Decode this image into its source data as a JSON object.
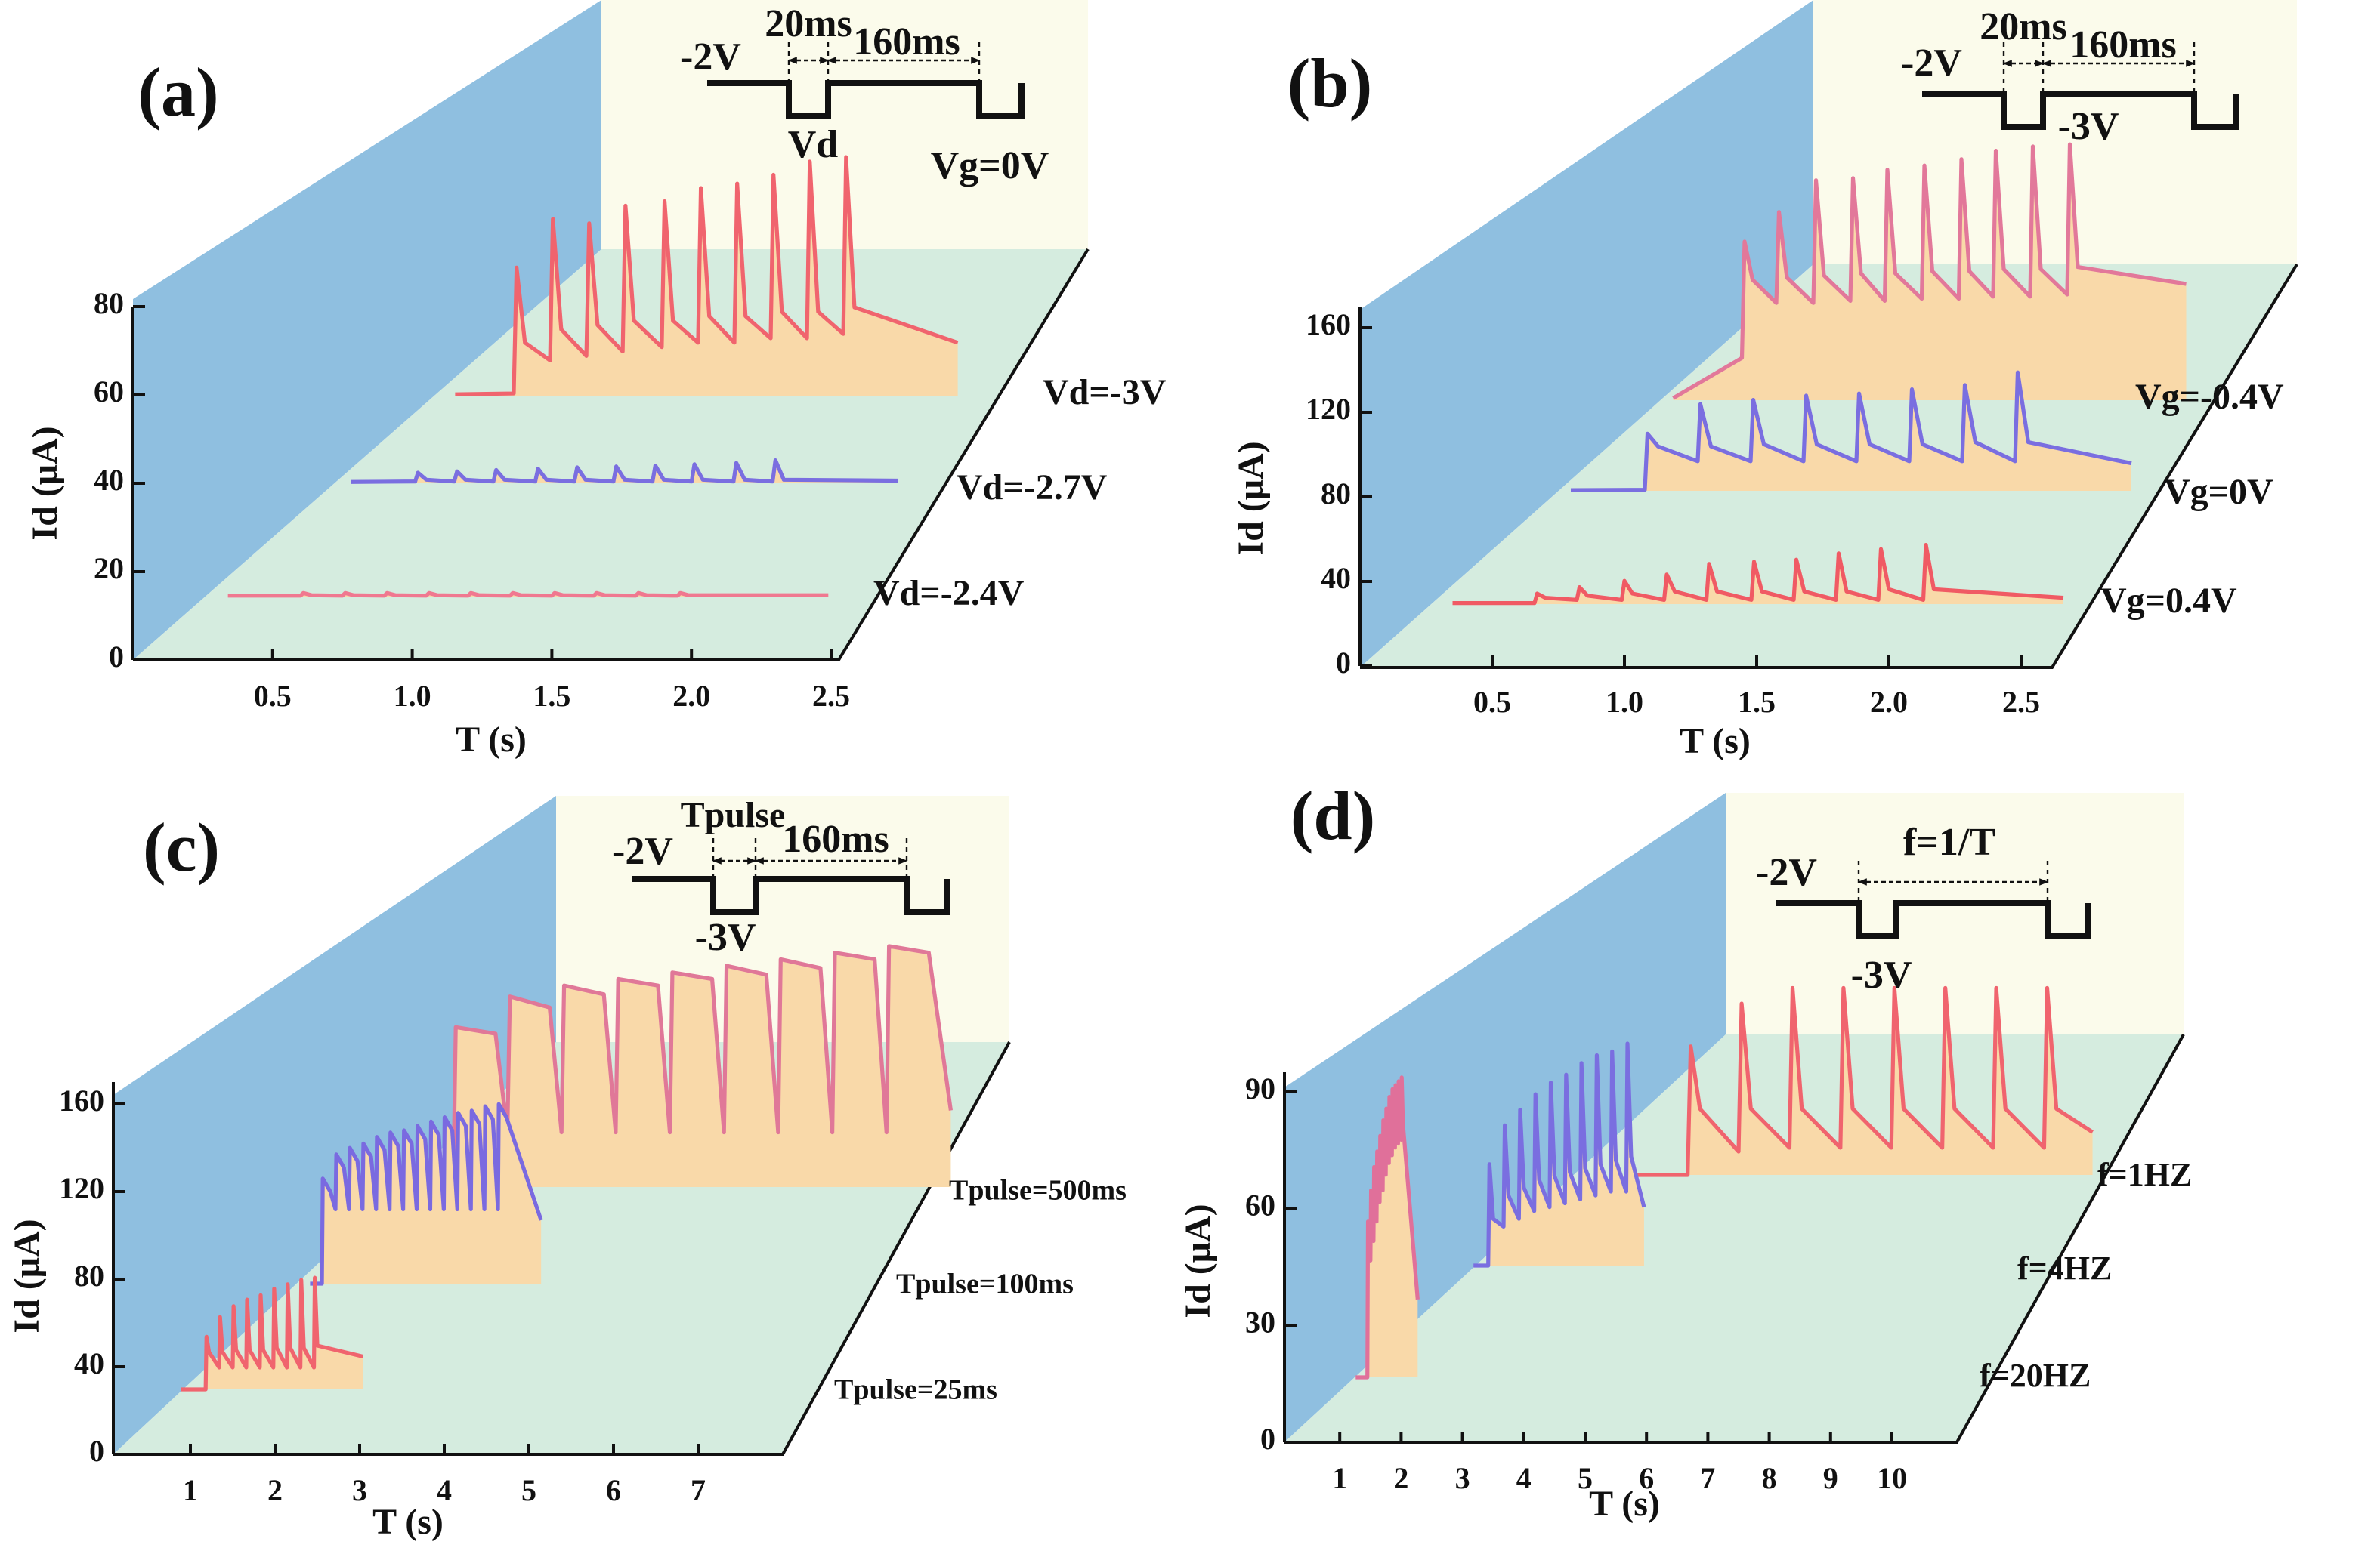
{
  "chart_data": [
    {
      "type": "line",
      "panel": "(a)",
      "xlabel": "T (s)",
      "ylabel": "Id (μA)",
      "area_color": "#f9d9a9",
      "annotations": [
        "-2V",
        "20ms",
        "160ms",
        "Vd",
        "Vg=0V"
      ],
      "xlim": [
        0,
        2.5
      ],
      "ylim": [
        0,
        80
      ],
      "xticks": [
        0.5,
        {
          "value": 1,
          "label": "1.0"
        },
        1.5,
        {
          "value": 2,
          "label": "2.0"
        },
        2.5
      ],
      "yticks": [
        0,
        20,
        40,
        60,
        80
      ],
      "series": [
        {
          "name": "Vd=-3V",
          "color": "#f0646e",
          "x": [
            0.58,
            0.79,
            0.8,
            0.83,
            0.92,
            0.93,
            0.96,
            1.05,
            1.06,
            1.09,
            1.18,
            1.19,
            1.22,
            1.32,
            1.33,
            1.36,
            1.45,
            1.46,
            1.49,
            1.58,
            1.59,
            1.62,
            1.71,
            1.72,
            1.75,
            1.84,
            1.85,
            1.88,
            1.97,
            1.98,
            2.01,
            2.38
          ],
          "values": [
            0.3,
            0.5,
            29,
            12,
            8,
            40,
            15,
            9,
            39,
            16,
            10,
            43,
            17,
            11,
            44,
            17,
            12,
            47,
            18,
            12,
            48,
            18,
            13,
            50,
            19,
            13,
            53,
            19,
            14,
            54,
            20,
            12
          ]
        },
        {
          "name": "Vd=-2.7V",
          "color": "#7a6ee0",
          "x": [
            0.51,
            0.74,
            0.75,
            0.78,
            0.88,
            0.89,
            0.92,
            1.02,
            1.03,
            1.06,
            1.17,
            1.18,
            1.21,
            1.31,
            1.32,
            1.35,
            1.45,
            1.46,
            1.49,
            1.59,
            1.6,
            1.63,
            1.73,
            1.74,
            1.77,
            1.88,
            1.89,
            1.92,
            2.02,
            2.03,
            2.06,
            2.47
          ],
          "values": [
            0.3,
            0.4,
            2.4,
            0.8,
            0.4,
            2.7,
            0.8,
            0.4,
            3,
            0.8,
            0.4,
            3.3,
            0.8,
            0.4,
            3.6,
            0.8,
            0.4,
            3.8,
            0.8,
            0.4,
            4,
            0.8,
            0.4,
            4.3,
            0.8,
            0.4,
            4.6,
            0.8,
            0.4,
            5.2,
            0.8,
            0.6
          ]
        },
        {
          "name": "Vd=-2.4V",
          "color": "#f07890",
          "x": [
            0.34,
            0.6,
            0.61,
            0.64,
            0.75,
            0.76,
            0.79,
            0.9,
            0.91,
            0.94,
            1.05,
            1.06,
            1.09,
            1.2,
            1.21,
            1.24,
            1.35,
            1.36,
            1.39,
            1.5,
            1.51,
            1.54,
            1.65,
            1.66,
            1.69,
            1.8,
            1.81,
            1.84,
            1.95,
            1.96,
            1.99,
            2.49
          ],
          "values": [
            0.2,
            0.2,
            0.8,
            0.3,
            0.2,
            0.8,
            0.3,
            0.2,
            0.8,
            0.3,
            0.2,
            0.8,
            0.3,
            0.2,
            0.8,
            0.3,
            0.2,
            0.8,
            0.3,
            0.2,
            0.8,
            0.3,
            0.2,
            0.8,
            0.3,
            0.2,
            0.8,
            0.3,
            0.2,
            0.8,
            0.3,
            0.3
          ]
        }
      ]
    },
    {
      "type": "line",
      "panel": "(b)",
      "xlabel": "T (s)",
      "ylabel": "Id (μA)",
      "area_color": "#f9d9a9",
      "annotations": [
        "-2V",
        "20ms",
        "160ms",
        "-3V"
      ],
      "xlim": [
        0,
        2.5
      ],
      "ylim": [
        0,
        170
      ],
      "xticks": [
        0.5,
        {
          "value": 1,
          "label": "1.0"
        },
        1.5,
        {
          "value": 2,
          "label": "2.0"
        },
        2.5
      ],
      "yticks": [
        0,
        40,
        80,
        120,
        160
      ],
      "series": [
        {
          "name": "Vg=-0.4V",
          "color": "#e2789a",
          "x": [
            0.27,
            0.53,
            0.54,
            0.57,
            0.66,
            0.67,
            0.7,
            0.8,
            0.81,
            0.84,
            0.94,
            0.95,
            0.98,
            1.07,
            1.08,
            1.11,
            1.21,
            1.22,
            1.25,
            1.35,
            1.36,
            1.39,
            1.48,
            1.49,
            1.52,
            1.62,
            1.63,
            1.66,
            1.76,
            1.77,
            1.8,
            2.21
          ],
          "values": [
            1,
            20,
            75,
            57,
            46,
            89,
            58,
            46,
            104,
            59,
            47,
            105,
            60,
            47,
            109,
            60,
            48,
            111,
            61,
            48,
            114,
            61,
            49,
            118,
            62,
            49,
            120,
            62,
            50,
            121,
            63,
            55
          ]
        },
        {
          "name": "Vg=0V",
          "color": "#7a6ee0",
          "x": [
            0.34,
            0.62,
            0.63,
            0.67,
            0.82,
            0.83,
            0.87,
            1.02,
            1.03,
            1.07,
            1.22,
            1.23,
            1.27,
            1.42,
            1.43,
            1.47,
            1.62,
            1.63,
            1.67,
            1.82,
            1.83,
            1.87,
            2.02,
            2.03,
            2.07,
            2.46
          ],
          "values": [
            0.3,
            0.5,
            27,
            21,
            14,
            41,
            21,
            14,
            43,
            22,
            14,
            45,
            22,
            14,
            46,
            22,
            14,
            48,
            22,
            14,
            50,
            23,
            14,
            56,
            23,
            13
          ]
        },
        {
          "name": "Vg=0.4V",
          "color": "#f05a64",
          "x": [
            0.35,
            0.66,
            0.67,
            0.7,
            0.82,
            0.83,
            0.86,
            0.99,
            1,
            1.03,
            1.15,
            1.16,
            1.19,
            1.31,
            1.32,
            1.35,
            1.48,
            1.49,
            1.52,
            1.64,
            1.65,
            1.68,
            1.8,
            1.81,
            1.84,
            1.96,
            1.97,
            2,
            2.13,
            2.14,
            2.17,
            2.66
          ],
          "values": [
            0.5,
            0.5,
            5,
            3,
            2,
            8,
            4,
            2,
            11,
            5,
            2,
            14,
            6,
            2,
            19,
            6,
            2,
            20,
            6,
            2,
            21,
            6,
            2,
            24,
            6,
            2,
            26,
            7,
            2,
            28,
            7,
            3
          ]
        }
      ]
    },
    {
      "type": "line",
      "panel": "(c)",
      "xlabel": "T (s)",
      "ylabel": "Id (μA)",
      "area_color": "#f9d9a9",
      "annotations": [
        "Tpulse",
        "-2V",
        "160ms",
        "-3V"
      ],
      "xlim": [
        0,
        8
      ],
      "ylim": [
        0,
        170
      ],
      "xticks": [
        1,
        2,
        3,
        4,
        5,
        6,
        7
      ],
      "yticks": [
        0,
        40,
        80,
        120,
        160
      ],
      "series": [
        {
          "name": "Tpulse=500ms",
          "color": "#e07898",
          "x": [
            0.93,
            1.07,
            1.1,
            1.57,
            1.71,
            1.74,
            2.21,
            2.35,
            2.38,
            2.85,
            2.99,
            3.02,
            3.49,
            3.63,
            3.66,
            4.13,
            4.27,
            4.3,
            4.77,
            4.91,
            4.94,
            5.41,
            5.55,
            5.58,
            6.05,
            6.19,
            6.22,
            6.69,
            6.95
          ],
          "values": [
            0,
            0,
            73,
            70,
            25,
            87,
            82,
            25,
            92,
            88,
            25,
            95,
            92,
            25,
            98,
            95,
            25,
            101,
            97,
            25,
            104,
            100,
            25,
            107,
            104,
            25,
            110,
            107,
            35
          ]
        },
        {
          "name": "Tpulse=100ms",
          "color": "#7a6ae0",
          "x": [
            1.7,
            1.84,
            1.85,
            1.94,
            2,
            2.01,
            2.1,
            2.16,
            2.17,
            2.26,
            2.32,
            2.33,
            2.42,
            2.48,
            2.49,
            2.58,
            2.64,
            2.65,
            2.74,
            2.8,
            2.81,
            2.9,
            2.96,
            2.97,
            3.06,
            3.12,
            3.13,
            3.22,
            3.28,
            3.29,
            3.38,
            3.44,
            3.45,
            3.54,
            3.6,
            3.61,
            3.7,
            3.76,
            3.77,
            3.86,
            3.92,
            3.93,
            4.02,
            4.43
          ],
          "values": [
            0,
            0,
            48,
            42,
            34,
            59,
            53,
            34,
            62,
            56,
            34,
            64,
            58,
            34,
            67,
            61,
            34,
            69,
            63,
            34,
            70,
            64,
            34,
            72,
            66,
            34,
            74,
            68,
            34,
            76,
            70,
            34,
            78,
            72,
            34,
            79,
            73,
            34,
            81,
            75,
            34,
            82,
            76,
            29
          ]
        },
        {
          "name": "Tpulse=25ms",
          "color": "#f0646e",
          "x": [
            0.89,
            1.18,
            1.19,
            1.22,
            1.34,
            1.35,
            1.38,
            1.5,
            1.51,
            1.54,
            1.66,
            1.67,
            1.7,
            1.82,
            1.83,
            1.86,
            1.98,
            1.99,
            2.02,
            2.14,
            2.15,
            2.18,
            2.3,
            2.31,
            2.34,
            2.46,
            2.47,
            2.5,
            3.04
          ],
          "values": [
            0,
            0,
            24,
            17,
            10,
            33,
            17,
            10,
            38,
            18,
            10,
            41,
            18,
            10,
            43,
            18,
            10,
            46,
            19,
            10,
            48,
            19,
            10,
            50,
            19,
            10,
            51,
            20,
            15
          ]
        }
      ]
    },
    {
      "type": "line",
      "panel": "(d)",
      "xlabel": "T (s)",
      "ylabel": "Id (μA)",
      "area_color": "#f9d9a9",
      "annotations": [
        "-2V",
        "f=1/T",
        "-3V"
      ],
      "xlim": [
        0,
        11
      ],
      "ylim": [
        0,
        95
      ],
      "xticks": [
        1,
        2,
        3,
        4,
        5,
        6,
        7,
        8,
        9,
        10
      ],
      "yticks": [
        0,
        30,
        60,
        90
      ],
      "series": [
        {
          "name": "f=1HZ",
          "color": "#f0646e",
          "x": [
            3.79,
            4.7,
            4.75,
            4.9,
            5.53,
            5.58,
            5.73,
            6.36,
            6.41,
            6.56,
            7.19,
            7.24,
            7.39,
            8.02,
            8.07,
            8.22,
            8.85,
            8.9,
            9.05,
            9.68,
            9.73,
            9.88,
            10.51,
            10.56,
            10.71,
            11.3
          ],
          "values": [
            0,
            0,
            33,
            17,
            6,
            44,
            17,
            7,
            48,
            17,
            7,
            48,
            17,
            7,
            48,
            17,
            7,
            48,
            17,
            7,
            48,
            17,
            7,
            48,
            17,
            11
          ]
        },
        {
          "name": "f=4HZ",
          "color": "#7a6ee0",
          "x": [
            3.18,
            3.42,
            3.44,
            3.5,
            3.67,
            3.69,
            3.75,
            3.92,
            3.94,
            4,
            4.17,
            4.19,
            4.25,
            4.42,
            4.44,
            4.5,
            4.67,
            4.69,
            4.75,
            4.92,
            4.94,
            5,
            5.17,
            5.19,
            5.25,
            5.42,
            5.44,
            5.5,
            5.67,
            5.69,
            5.75,
            5.96
          ],
          "values": [
            0,
            0,
            26,
            12,
            10,
            36,
            18,
            12,
            40,
            20,
            14,
            44,
            22,
            15,
            47,
            23,
            16,
            49,
            24,
            17,
            52,
            25,
            18,
            54,
            26,
            19,
            55,
            27,
            19,
            57,
            28,
            15
          ]
        },
        {
          "name": "f=20HZ",
          "color": "#e0709a",
          "x": [
            1.26,
            1.45,
            1.46,
            1.48,
            1.5,
            1.51,
            1.53,
            1.55,
            1.56,
            1.58,
            1.6,
            1.61,
            1.63,
            1.65,
            1.66,
            1.68,
            1.7,
            1.71,
            1.73,
            1.75,
            1.76,
            1.78,
            1.8,
            1.81,
            1.83,
            1.85,
            1.86,
            1.88,
            1.9,
            1.91,
            1.93,
            1.95,
            1.96,
            1.98,
            2,
            2.01,
            2.03,
            2.27
          ],
          "values": [
            0,
            0,
            40,
            30,
            30,
            48,
            38,
            35,
            54,
            42,
            40,
            58,
            46,
            45,
            62,
            50,
            48,
            66,
            54,
            52,
            69,
            57,
            55,
            72,
            60,
            57,
            74,
            62,
            59,
            75,
            63,
            60,
            76,
            64,
            61,
            77,
            65,
            20
          ]
        }
      ]
    }
  ]
}
